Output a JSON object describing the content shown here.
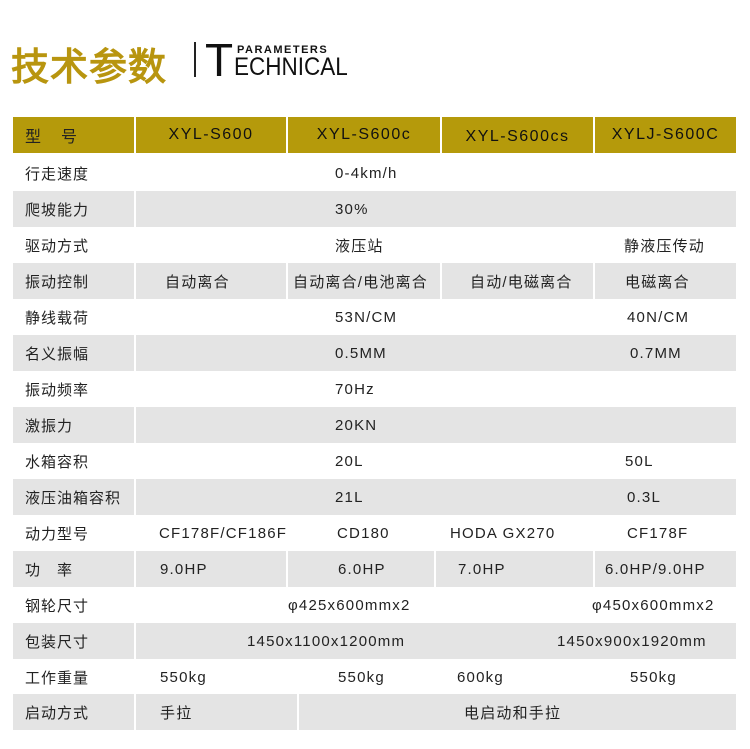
{
  "header": {
    "title_cn": "技术参数",
    "title_en_initial": "T",
    "title_en_sub": "PARAMETERS",
    "title_en_rest": "ECHNICAL"
  },
  "accent_color": "#b59a0b",
  "table": {
    "header": {
      "label": "型　号",
      "models": [
        "XYL-S600",
        "XYL-S600c",
        "XYL-S600cs",
        "XYLJ-S600C"
      ]
    },
    "rows": [
      {
        "label": "行走速度",
        "values": [
          "0-4km/h"
        ]
      },
      {
        "label": "爬坡能力",
        "values": [
          "30%"
        ]
      },
      {
        "label": "驱动方式",
        "values": [
          "液压站",
          "静液压传动"
        ]
      },
      {
        "label": "振动控制",
        "values": [
          "自动离合",
          "自动离合/电池离合",
          "自动/电磁离合",
          "电磁离合"
        ]
      },
      {
        "label": "静线载荷",
        "values": [
          "53N/CM",
          "40N/CM"
        ]
      },
      {
        "label": "名义振幅",
        "values": [
          "0.5MM",
          "0.7MM"
        ]
      },
      {
        "label": "振动频率",
        "values": [
          "70Hz"
        ]
      },
      {
        "label": "激振力",
        "values": [
          "20KN"
        ]
      },
      {
        "label": "水箱容积",
        "values": [
          "20L",
          "50L"
        ]
      },
      {
        "label": "液压油箱容积",
        "values": [
          "21L",
          "0.3L"
        ]
      },
      {
        "label": "动力型号",
        "values": [
          "CF178F/CF186F",
          "CD180",
          "HODA GX270",
          "CF178F"
        ]
      },
      {
        "label": "功　率",
        "values": [
          "9.0HP",
          "6.0HP",
          "7.0HP",
          "6.0HP/9.0HP"
        ]
      },
      {
        "label": "钢轮尺寸",
        "values": [
          "φ425x600mmx2",
          "φ450x600mmx2"
        ]
      },
      {
        "label": "包装尺寸",
        "values": [
          "1450x1100x1200mm",
          "1450x900x1920mm"
        ]
      },
      {
        "label": "工作重量",
        "values": [
          "550kg",
          "550kg",
          "600kg",
          "550kg"
        ]
      },
      {
        "label": "启动方式",
        "values": [
          "手拉",
          "电启动和手拉"
        ]
      }
    ]
  }
}
